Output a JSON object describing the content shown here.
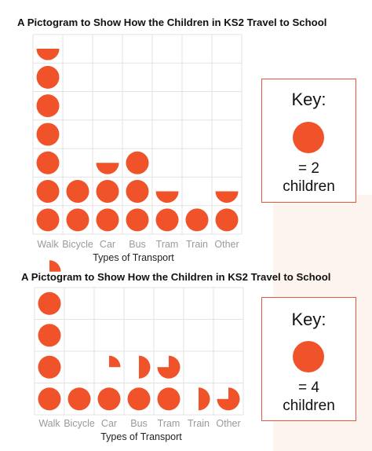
{
  "chart_data": [
    {
      "type": "pictogram",
      "title": "A Pictogram to Show How the Children in KS2 Travel to School",
      "xlabel": "Types of Transport",
      "categories": [
        "Walk",
        "Bicycle",
        "Car",
        "Bus",
        "Tram",
        "Train",
        "Other"
      ],
      "symbols": [
        6.5,
        2,
        2.5,
        3,
        1.5,
        1,
        1.5
      ],
      "values": [
        13,
        4,
        5,
        6,
        3,
        2,
        3
      ],
      "symbol_color": "#f0522a",
      "key": {
        "title": "Key:",
        "equals": "= 2",
        "unit": "children",
        "value_per_symbol": 2
      }
    },
    {
      "type": "pictogram",
      "title": "A Pictogram to Show How the Children in KS2 Travel to School",
      "xlabel": "Types of Transport",
      "categories": [
        "Walk",
        "Bicycle",
        "Car",
        "Bus",
        "Tram",
        "Train",
        "Other"
      ],
      "symbols": [
        4.25,
        1,
        1.25,
        1.5,
        1.75,
        0.5,
        0.75
      ],
      "values": [
        17,
        4,
        5,
        6,
        7,
        2,
        3
      ],
      "symbol_color": "#f0522a",
      "key": {
        "title": "Key:",
        "equals": "= 4",
        "unit": "children",
        "value_per_symbol": 4
      }
    }
  ]
}
